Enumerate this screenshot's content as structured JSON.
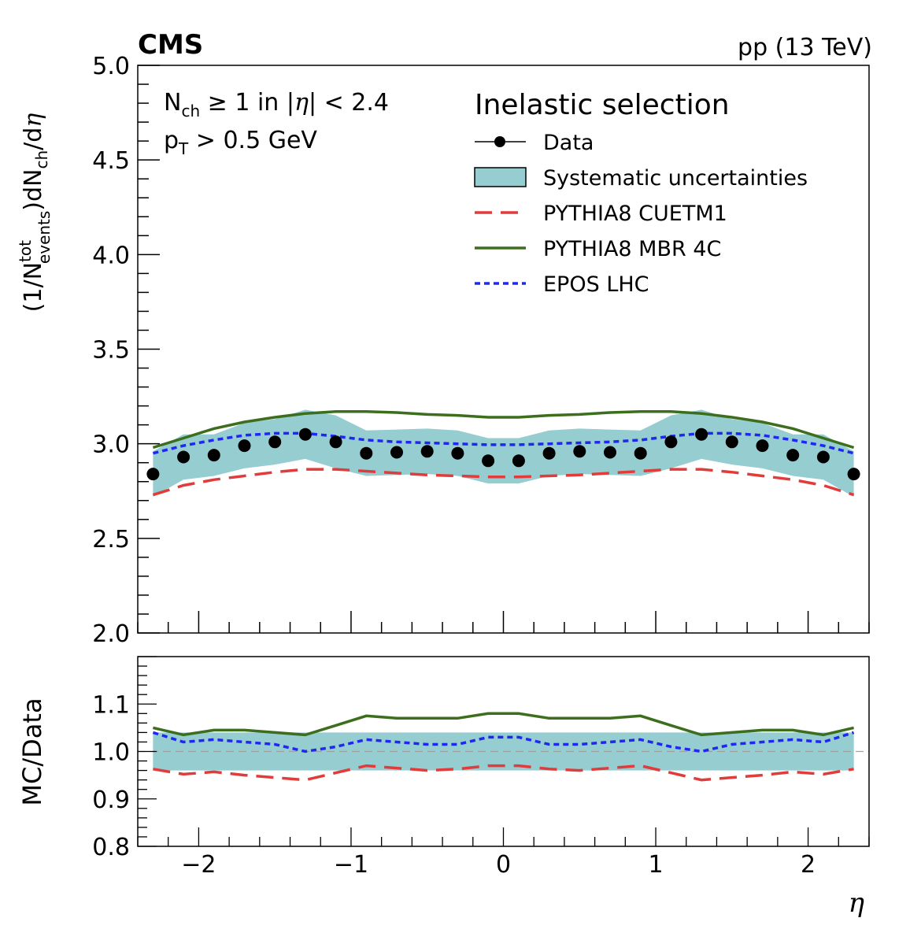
{
  "chart_data": {
    "type": "line",
    "experiment_label": "CMS",
    "energy_label": "pp (13 TeV)",
    "selection": {
      "line1_pre": "N",
      "line1_sub": "ch",
      "line1_mid": " ≥ 1 in |",
      "line1_eta": "η",
      "line1_post": "| < 2.4",
      "line2_pre": "p",
      "line2_sub": "T",
      "line2_post": " > 0.5 GeV"
    },
    "legend": {
      "title": "Inelastic selection",
      "entries": [
        "Data",
        "Systematic uncertainties",
        "PYTHIA8 CUETM1",
        "PYTHIA8 MBR 4C",
        "EPOS LHC"
      ]
    },
    "colors": {
      "data": "#000000",
      "band": "#96cdd0",
      "cuetm1": "#e03c3c",
      "mbr4c": "#3c6e1e",
      "epos": "#1e28f0"
    },
    "x": [
      -2.3,
      -2.1,
      -1.9,
      -1.7,
      -1.5,
      -1.3,
      -1.1,
      -0.9,
      -0.7,
      -0.5,
      -0.3,
      -0.1,
      0.1,
      0.3,
      0.5,
      0.7,
      0.9,
      1.1,
      1.3,
      1.5,
      1.7,
      1.9,
      2.1,
      2.3
    ],
    "top_panel": {
      "ylabel": "(1/N^tot_events)dN_ch/dη",
      "ylabel_parts": {
        "open": "(1/N",
        "sup": "tot",
        "sub": "events",
        "mid": ")dN",
        "sub2": "ch",
        "close": "/d",
        "eta": "η"
      },
      "ylim": [
        2.0,
        5.0
      ],
      "yticks": [
        "2.0",
        "2.5",
        "3.0",
        "3.5",
        "4.0",
        "4.5",
        "5.0"
      ],
      "series": [
        {
          "name": "Data",
          "values": [
            2.84,
            2.93,
            2.94,
            2.99,
            3.01,
            3.05,
            3.01,
            2.95,
            2.955,
            2.96,
            2.95,
            2.91,
            2.91,
            2.95,
            2.96,
            2.955,
            2.95,
            3.01,
            3.05,
            3.01,
            2.99,
            2.94,
            2.93,
            2.84
          ]
        },
        {
          "name": "Systematic uncertainties",
          "low": [
            2.72,
            2.81,
            2.83,
            2.87,
            2.89,
            2.92,
            2.87,
            2.83,
            2.835,
            2.84,
            2.83,
            2.79,
            2.79,
            2.83,
            2.84,
            2.835,
            2.83,
            2.87,
            2.92,
            2.89,
            2.87,
            2.83,
            2.81,
            2.72
          ],
          "high": [
            2.96,
            3.05,
            3.05,
            3.11,
            3.13,
            3.18,
            3.15,
            3.07,
            3.075,
            3.08,
            3.07,
            3.03,
            3.03,
            3.07,
            3.08,
            3.075,
            3.07,
            3.15,
            3.18,
            3.13,
            3.11,
            3.05,
            3.05,
            2.96
          ]
        },
        {
          "name": "PYTHIA8 CUETM1",
          "values": [
            2.73,
            2.78,
            2.81,
            2.83,
            2.85,
            2.865,
            2.865,
            2.855,
            2.845,
            2.835,
            2.83,
            2.825,
            2.825,
            2.83,
            2.835,
            2.845,
            2.855,
            2.865,
            2.865,
            2.85,
            2.83,
            2.81,
            2.78,
            2.73
          ]
        },
        {
          "name": "PYTHIA8 MBR 4C",
          "values": [
            2.98,
            3.03,
            3.08,
            3.115,
            3.14,
            3.16,
            3.17,
            3.17,
            3.165,
            3.155,
            3.15,
            3.14,
            3.14,
            3.15,
            3.155,
            3.165,
            3.17,
            3.17,
            3.16,
            3.14,
            3.115,
            3.08,
            3.03,
            2.98
          ]
        },
        {
          "name": "EPOS LHC",
          "values": [
            2.95,
            2.99,
            3.02,
            3.045,
            3.055,
            3.055,
            3.04,
            3.02,
            3.01,
            3.005,
            3.0,
            2.995,
            2.995,
            3.0,
            3.005,
            3.01,
            3.02,
            3.04,
            3.055,
            3.055,
            3.045,
            3.02,
            2.99,
            2.95
          ]
        }
      ]
    },
    "ratio_panel": {
      "ylabel": "MC/Data",
      "ylim": [
        0.8,
        1.2
      ],
      "yticks": [
        "0.8",
        "0.9",
        "1.0",
        "1.1"
      ],
      "band": {
        "low": 0.96,
        "high": 1.04
      },
      "reference": 1.0,
      "series": [
        {
          "name": "PYTHIA8 CUETM1",
          "values": [
            0.963,
            0.952,
            0.957,
            0.95,
            0.945,
            0.94,
            0.955,
            0.97,
            0.965,
            0.96,
            0.963,
            0.97,
            0.97,
            0.963,
            0.96,
            0.965,
            0.97,
            0.955,
            0.94,
            0.945,
            0.95,
            0.957,
            0.952,
            0.963
          ]
        },
        {
          "name": "PYTHIA8 MBR 4C",
          "values": [
            1.05,
            1.035,
            1.045,
            1.045,
            1.04,
            1.035,
            1.055,
            1.075,
            1.07,
            1.07,
            1.07,
            1.08,
            1.08,
            1.07,
            1.07,
            1.07,
            1.075,
            1.055,
            1.035,
            1.04,
            1.045,
            1.045,
            1.035,
            1.05
          ]
        },
        {
          "name": "EPOS LHC",
          "values": [
            1.04,
            1.02,
            1.025,
            1.02,
            1.015,
            1.0,
            1.01,
            1.025,
            1.02,
            1.015,
            1.015,
            1.03,
            1.03,
            1.015,
            1.015,
            1.02,
            1.025,
            1.01,
            1.0,
            1.015,
            1.02,
            1.025,
            1.02,
            1.04
          ]
        }
      ]
    },
    "x_axis": {
      "label": "η",
      "xlim": [
        -2.4,
        2.4
      ],
      "ticks": [
        -2,
        -1,
        0,
        1,
        2
      ],
      "tick_labels": [
        "−2",
        "−1",
        "0",
        "1",
        "2"
      ]
    }
  }
}
